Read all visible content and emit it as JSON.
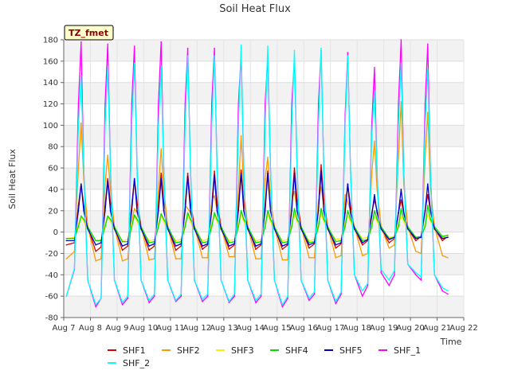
{
  "chart_data": {
    "type": "line",
    "title": "Soil Heat Flux",
    "xlabel": "Time",
    "ylabel": "Soil Heat Flux",
    "site_badge": "TZ_fmet",
    "xlim": [
      7,
      22
    ],
    "ylim": [
      -80,
      180
    ],
    "x_ticks": [
      7,
      8,
      9,
      10,
      11,
      12,
      13,
      14,
      15,
      16,
      17,
      18,
      19,
      20,
      21,
      22
    ],
    "x_tick_labels": [
      "Aug 7",
      "Aug 8",
      "Aug 9",
      "Aug 10",
      "Aug 11",
      "Aug 12",
      "Aug 13",
      "Aug 14",
      "Aug 15",
      "Aug 16",
      "Aug 17",
      "Aug 18",
      "Aug 19",
      "Aug 20",
      "Aug 21",
      "Aug 22"
    ],
    "y_ticks": [
      -80,
      -60,
      -40,
      -20,
      0,
      20,
      40,
      60,
      80,
      100,
      120,
      140,
      160,
      180
    ],
    "y_tick_labels": [
      "-80",
      "-60",
      "-40",
      "-20",
      "0",
      "20",
      "40",
      "60",
      "80",
      "100",
      "120",
      "140",
      "160",
      "180"
    ],
    "grid": true,
    "legend_position": "bottom",
    "x": [
      7.1,
      7.4,
      7.55,
      7.65,
      7.75,
      7.9,
      8.2,
      8.4,
      8.55,
      8.65,
      8.75,
      8.9,
      9.2,
      9.4,
      9.55,
      9.65,
      9.75,
      9.9,
      10.2,
      10.4,
      10.55,
      10.65,
      10.75,
      10.9,
      11.2,
      11.4,
      11.55,
      11.65,
      11.75,
      11.9,
      12.2,
      12.4,
      12.55,
      12.65,
      12.75,
      12.9,
      13.2,
      13.4,
      13.55,
      13.65,
      13.75,
      13.9,
      14.2,
      14.4,
      14.55,
      14.65,
      14.75,
      14.9,
      15.2,
      15.4,
      15.55,
      15.65,
      15.75,
      15.9,
      16.2,
      16.4,
      16.55,
      16.65,
      16.75,
      16.9,
      17.2,
      17.4,
      17.55,
      17.65,
      17.75,
      17.9,
      18.2,
      18.4,
      18.55,
      18.65,
      18.75,
      18.9,
      19.2,
      19.4,
      19.55,
      19.65,
      19.75,
      19.9,
      20.2,
      20.4,
      20.55,
      20.65,
      20.75,
      20.9,
      21.2,
      21.4
    ],
    "series": [
      {
        "name": "SHF1",
        "color": "#dd0000",
        "values": [
          -12,
          -10,
          25,
          45,
          25,
          5,
          -18,
          -14,
          25,
          50,
          28,
          5,
          -17,
          -13,
          25,
          50,
          28,
          5,
          -17,
          -13,
          25,
          55,
          28,
          5,
          -17,
          -13,
          25,
          55,
          28,
          5,
          -16,
          -12,
          25,
          57,
          28,
          5,
          -16,
          -12,
          25,
          58,
          28,
          5,
          -16,
          -12,
          25,
          57,
          28,
          5,
          -16,
          -12,
          25,
          60,
          30,
          5,
          -15,
          -11,
          25,
          63,
          30,
          5,
          -15,
          -11,
          22,
          45,
          25,
          3,
          -12,
          -8,
          18,
          30,
          20,
          3,
          -10,
          -6,
          18,
          30,
          18,
          3,
          -8,
          -4,
          20,
          35,
          20,
          3,
          -8,
          -4
        ]
      },
      {
        "name": "SHF2",
        "color": "#ff9900",
        "values": [
          -25,
          -18,
          60,
          102,
          50,
          5,
          -27,
          -25,
          45,
          72,
          40,
          5,
          -27,
          -25,
          10,
          22,
          18,
          5,
          -26,
          -25,
          40,
          78,
          40,
          5,
          -25,
          -25,
          25,
          22,
          18,
          5,
          -24,
          -24,
          30,
          34,
          20,
          5,
          -23,
          -23,
          40,
          90,
          40,
          5,
          -25,
          -25,
          50,
          70,
          30,
          5,
          -26,
          -26,
          30,
          38,
          20,
          5,
          -24,
          -24,
          30,
          42,
          25,
          5,
          -24,
          -22,
          35,
          28,
          20,
          5,
          -22,
          -20,
          55,
          85,
          40,
          5,
          -15,
          -12,
          70,
          122,
          45,
          5,
          -18,
          -20,
          70,
          112,
          40,
          5,
          -22,
          -24
        ]
      },
      {
        "name": "SHF3",
        "color": "#ffee00",
        "values": [
          -6,
          -5,
          8,
          14,
          10,
          2,
          -8,
          -7,
          8,
          15,
          10,
          2,
          -8,
          -7,
          8,
          15,
          10,
          2,
          -8,
          -7,
          8,
          15,
          10,
          2,
          -8,
          -7,
          8,
          16,
          10,
          2,
          -8,
          -7,
          8,
          16,
          10,
          2,
          -8,
          -7,
          8,
          16,
          10,
          2,
          -8,
          -7,
          8,
          16,
          10,
          2,
          -8,
          -7,
          8,
          17,
          10,
          2,
          -8,
          -7,
          8,
          17,
          10,
          2,
          -7,
          -6,
          8,
          15,
          10,
          2,
          -6,
          -5,
          8,
          15,
          10,
          2,
          -5,
          -4,
          8,
          15,
          10,
          2,
          -5,
          -4,
          8,
          16,
          10,
          2,
          -5,
          -4
        ]
      },
      {
        "name": "SHF4",
        "color": "#00dd00",
        "values": [
          -6,
          -6,
          5,
          15,
          12,
          5,
          -8,
          -8,
          5,
          15,
          12,
          5,
          -9,
          -9,
          5,
          16,
          12,
          5,
          -10,
          -9,
          5,
          17,
          12,
          5,
          -10,
          -9,
          5,
          18,
          12,
          5,
          -10,
          -9,
          5,
          18,
          12,
          5,
          -10,
          -9,
          5,
          20,
          12,
          5,
          -10,
          -9,
          5,
          20,
          12,
          5,
          -10,
          -9,
          5,
          22,
          12,
          5,
          -10,
          -9,
          5,
          22,
          12,
          5,
          -9,
          -8,
          5,
          20,
          12,
          5,
          -8,
          -7,
          5,
          20,
          12,
          5,
          -6,
          -5,
          5,
          22,
          12,
          5,
          -5,
          -4,
          5,
          25,
          12,
          5,
          -4,
          -3
        ]
      },
      {
        "name": "SHF5",
        "color": "#0000cc",
        "values": [
          -8,
          -8,
          20,
          45,
          20,
          3,
          -12,
          -10,
          20,
          48,
          20,
          3,
          -13,
          -11,
          20,
          50,
          20,
          3,
          -13,
          -11,
          20,
          50,
          20,
          3,
          -13,
          -11,
          20,
          52,
          20,
          3,
          -13,
          -11,
          20,
          53,
          20,
          3,
          -13,
          -11,
          20,
          55,
          20,
          3,
          -13,
          -11,
          20,
          55,
          20,
          3,
          -13,
          -11,
          20,
          55,
          20,
          3,
          -12,
          -10,
          20,
          57,
          20,
          3,
          -12,
          -10,
          18,
          45,
          18,
          3,
          -10,
          -7,
          15,
          35,
          18,
          3,
          -7,
          -5,
          18,
          40,
          18,
          3,
          -6,
          -5,
          20,
          45,
          20,
          3,
          -6,
          -5
        ]
      },
      {
        "name": "SHF_1",
        "color": "#ff00ff",
        "values": [
          -60,
          -35,
          120,
          178,
          60,
          -45,
          -70,
          -62,
          120,
          176,
          60,
          -45,
          -68,
          -62,
          120,
          174,
          60,
          -45,
          -66,
          -60,
          120,
          178,
          60,
          -45,
          -65,
          -60,
          120,
          172,
          60,
          -45,
          -65,
          -60,
          120,
          172,
          60,
          -45,
          -66,
          -60,
          120,
          166,
          60,
          -45,
          -66,
          -60,
          120,
          164,
          60,
          -45,
          -70,
          -62,
          120,
          162,
          60,
          -45,
          -64,
          -58,
          120,
          170,
          60,
          -45,
          -67,
          -58,
          110,
          168,
          60,
          -40,
          -60,
          -50,
          100,
          154,
          55,
          -38,
          -50,
          -40,
          120,
          180,
          55,
          -30,
          -40,
          -45,
          120,
          176,
          55,
          -40,
          -55,
          -58
        ]
      },
      {
        "name": "SHF_2",
        "color": "#00ffff",
        "values": [
          -60,
          -34,
          100,
          146,
          60,
          -45,
          -68,
          -62,
          100,
          155,
          60,
          -45,
          -66,
          -60,
          100,
          158,
          60,
          -45,
          -64,
          -58,
          100,
          155,
          60,
          -45,
          -64,
          -58,
          100,
          165,
          60,
          -45,
          -63,
          -58,
          100,
          165,
          60,
          -45,
          -65,
          -58,
          100,
          175,
          60,
          -45,
          -64,
          -58,
          100,
          174,
          60,
          -45,
          -68,
          -60,
          100,
          170,
          60,
          -45,
          -62,
          -56,
          100,
          172,
          60,
          -45,
          -65,
          -56,
          100,
          165,
          60,
          -40,
          -55,
          -48,
          90,
          132,
          55,
          -35,
          -45,
          -36,
          100,
          158,
          55,
          -30,
          -38,
          -42,
          100,
          152,
          55,
          -40,
          -52,
          -55
        ]
      }
    ]
  }
}
